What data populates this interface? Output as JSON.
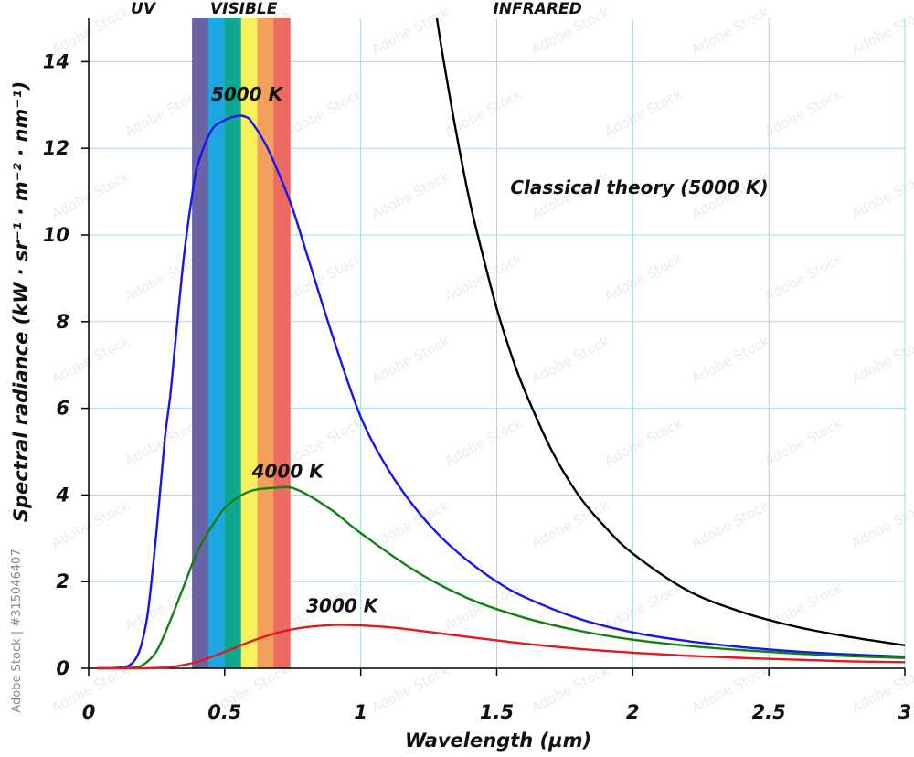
{
  "chart_data": {
    "type": "line",
    "xlabel": "Wavelength (µm)",
    "ylabel": "Spectral radiance (kW · sr⁻¹ · m⁻² · nm⁻¹)",
    "xlim": [
      0,
      3
    ],
    "ylim": [
      0,
      15
    ],
    "xticks": [
      0,
      0.5,
      1,
      1.5,
      2,
      2.5,
      3
    ],
    "xtick_labels": [
      "0",
      "0.5",
      "1",
      "1.5",
      "2",
      "2.5",
      "3"
    ],
    "yticks": [
      0,
      2,
      4,
      6,
      8,
      10,
      12,
      14
    ],
    "ytick_labels": [
      "0",
      "2",
      "4",
      "6",
      "8",
      "10",
      "12",
      "14"
    ],
    "grid": true,
    "bands": [
      {
        "label": "UV",
        "x": 0.2
      },
      {
        "label": "VISIBLE",
        "x": 0.57
      },
      {
        "label": "INFRARED",
        "x": 1.65
      }
    ],
    "visible_spectrum": {
      "range": [
        0.38,
        0.74
      ],
      "colors": [
        "#6a63a6",
        "#1ea6e0",
        "#0fa88e",
        "#f8ef5c",
        "#f2a15c",
        "#ec6a62"
      ]
    },
    "series": [
      {
        "name": "5000 K",
        "color": "#1515ee",
        "x": [
          0.03,
          0.1,
          0.15,
          0.18,
          0.2,
          0.22,
          0.25,
          0.28,
          0.3,
          0.32,
          0.35,
          0.38,
          0.4,
          0.45,
          0.5,
          0.55,
          0.58,
          0.6,
          0.65,
          0.7,
          0.75,
          0.8,
          0.9,
          1.0,
          1.1,
          1.2,
          1.3,
          1.4,
          1.5,
          1.6,
          1.8,
          2.0,
          2.2,
          2.4,
          2.6,
          2.8,
          3.0
        ],
        "y": [
          0.0,
          0.01,
          0.07,
          0.3,
          0.7,
          1.4,
          3.2,
          5.3,
          6.3,
          7.6,
          9.5,
          10.9,
          11.6,
          12.4,
          12.65,
          12.75,
          12.72,
          12.6,
          12.1,
          11.4,
          10.6,
          9.6,
          7.6,
          5.8,
          4.6,
          3.7,
          3.0,
          2.45,
          2.0,
          1.65,
          1.15,
          0.83,
          0.63,
          0.49,
          0.39,
          0.32,
          0.27
        ]
      },
      {
        "name": "4000 K",
        "color": "#128012",
        "x": [
          0.03,
          0.15,
          0.2,
          0.25,
          0.3,
          0.35,
          0.4,
          0.45,
          0.5,
          0.55,
          0.6,
          0.65,
          0.7,
          0.725,
          0.75,
          0.8,
          0.9,
          1.0,
          1.2,
          1.4,
          1.6,
          1.8,
          2.0,
          2.2,
          2.4,
          2.6,
          2.8,
          3.0
        ],
        "y": [
          0.0,
          0.01,
          0.08,
          0.4,
          1.1,
          1.9,
          2.7,
          3.25,
          3.7,
          3.95,
          4.1,
          4.15,
          4.17,
          4.18,
          4.16,
          4.02,
          3.62,
          3.12,
          2.25,
          1.6,
          1.17,
          0.87,
          0.66,
          0.52,
          0.42,
          0.34,
          0.28,
          0.24
        ]
      },
      {
        "name": "3000 K",
        "color": "#e31a1a",
        "x": [
          0.03,
          0.2,
          0.3,
          0.4,
          0.5,
          0.6,
          0.7,
          0.8,
          0.9,
          0.95,
          1.0,
          1.1,
          1.2,
          1.4,
          1.6,
          1.8,
          2.0,
          2.2,
          2.4,
          2.6,
          2.8,
          3.0
        ],
        "y": [
          0.0,
          0.0,
          0.03,
          0.15,
          0.38,
          0.63,
          0.83,
          0.95,
          1.0,
          1.0,
          0.99,
          0.95,
          0.88,
          0.72,
          0.57,
          0.45,
          0.36,
          0.29,
          0.24,
          0.2,
          0.16,
          0.14
        ]
      },
      {
        "name": "Classical theory (5000 K)",
        "color": "#000000",
        "x": [
          1.28,
          1.3,
          1.35,
          1.4,
          1.45,
          1.5,
          1.55,
          1.6,
          1.7,
          1.8,
          1.9,
          2.0,
          2.2,
          2.4,
          2.6,
          2.8,
          3.0
        ],
        "y": [
          15.0,
          14.2,
          12.4,
          10.8,
          9.5,
          8.3,
          7.3,
          6.45,
          5.05,
          4.0,
          3.25,
          2.65,
          1.8,
          1.3,
          0.96,
          0.72,
          0.53
        ]
      }
    ],
    "annotations": [
      {
        "text": "5000 K",
        "x": 0.45,
        "y": 13.1
      },
      {
        "text": "4000 K",
        "x": 0.6,
        "y": 4.4
      },
      {
        "text": "3000 K",
        "x": 0.8,
        "y": 1.3
      },
      {
        "text": "Classical theory (5000 K)",
        "x": 1.55,
        "y": 10.95
      }
    ]
  },
  "watermark": {
    "side_text": "Adobe Stock | #315046407",
    "tile_text": "Adobe Stock"
  }
}
